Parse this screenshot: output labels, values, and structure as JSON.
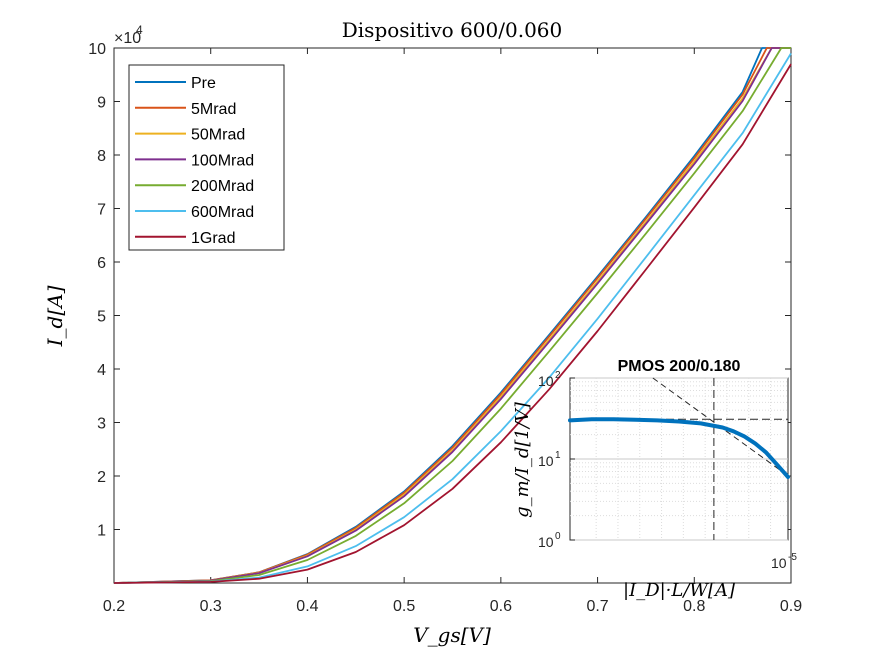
{
  "chart_data": [
    {
      "type": "line",
      "title": "Dispositivo 600/0.060",
      "xlabel": "V_gs[V]",
      "ylabel": "I_d[A]",
      "y_exponent_label": "×10",
      "y_exponent_power": "4",
      "xlim": [
        0.2,
        0.9
      ],
      "ylim": [
        0,
        100000
      ],
      "xticks": [
        0.2,
        0.3,
        0.4,
        0.5,
        0.6,
        0.7,
        0.8,
        0.9
      ],
      "xtick_labels": [
        "0.2",
        "0.3",
        "0.4",
        "0.5",
        "0.6",
        "0.7",
        "0.8",
        "0.9"
      ],
      "yticks": [
        10000,
        20000,
        30000,
        40000,
        50000,
        60000,
        70000,
        80000,
        90000,
        100000
      ],
      "ytick_labels": [
        "1",
        "2",
        "3",
        "4",
        "5",
        "6",
        "7",
        "8",
        "9",
        "10"
      ],
      "legend_position": "top-left",
      "grid": false,
      "series": [
        {
          "name": "Pre",
          "color": "#0072BD",
          "x": [
            0.2,
            0.3,
            0.35,
            0.4,
            0.45,
            0.5,
            0.55,
            0.6,
            0.65,
            0.7,
            0.75,
            0.8,
            0.85,
            0.87,
            0.9
          ],
          "y": [
            0,
            500,
            2000,
            5400,
            10500,
            17100,
            25600,
            35600,
            46400,
            57300,
            68400,
            79800,
            91800,
            100000,
            100000
          ]
        },
        {
          "name": "5Mrad",
          "color": "#D95319",
          "x": [
            0.2,
            0.3,
            0.35,
            0.4,
            0.45,
            0.5,
            0.55,
            0.6,
            0.65,
            0.7,
            0.75,
            0.8,
            0.85,
            0.875,
            0.9
          ],
          "y": [
            0,
            500,
            2000,
            5300,
            10300,
            16900,
            25300,
            35300,
            46100,
            57000,
            68100,
            79400,
            91300,
            100000,
            100000
          ]
        },
        {
          "name": "50Mrad",
          "color": "#EDB120",
          "x": [
            0.2,
            0.3,
            0.35,
            0.4,
            0.45,
            0.5,
            0.55,
            0.6,
            0.65,
            0.7,
            0.75,
            0.8,
            0.85,
            0.88,
            0.9
          ],
          "y": [
            0,
            450,
            1900,
            5100,
            10000,
            16500,
            24800,
            34800,
            45500,
            56400,
            67500,
            78800,
            90600,
            100000,
            100000
          ]
        },
        {
          "name": "100Mrad",
          "color": "#7E2F8E",
          "x": [
            0.2,
            0.3,
            0.35,
            0.4,
            0.45,
            0.5,
            0.55,
            0.6,
            0.65,
            0.7,
            0.75,
            0.8,
            0.85,
            0.88,
            0.9
          ],
          "y": [
            0,
            450,
            1850,
            5000,
            9800,
            16200,
            24500,
            34400,
            45100,
            56000,
            67100,
            78300,
            90100,
            100000,
            100000
          ]
        },
        {
          "name": "200Mrad",
          "color": "#77AC30",
          "x": [
            0.2,
            0.3,
            0.35,
            0.4,
            0.45,
            0.5,
            0.55,
            0.6,
            0.65,
            0.7,
            0.75,
            0.8,
            0.85,
            0.89,
            0.9
          ],
          "y": [
            0,
            350,
            1500,
            4300,
            8800,
            14900,
            22800,
            32600,
            43300,
            54200,
            65300,
            76600,
            88200,
            100000,
            100000
          ]
        },
        {
          "name": "600Mrad",
          "color": "#4DBEEE",
          "x": [
            0.2,
            0.3,
            0.35,
            0.4,
            0.45,
            0.5,
            0.55,
            0.6,
            0.65,
            0.7,
            0.75,
            0.8,
            0.85,
            0.9
          ],
          "y": [
            0,
            250,
            1000,
            3100,
            6900,
            12300,
            19400,
            28400,
            38400,
            49400,
            60900,
            72500,
            84100,
            99000
          ]
        },
        {
          "name": "1Grad",
          "color": "#A2142F",
          "x": [
            0.2,
            0.3,
            0.35,
            0.4,
            0.45,
            0.5,
            0.55,
            0.6,
            0.65,
            0.7,
            0.75,
            0.8,
            0.85,
            0.9
          ],
          "y": [
            0,
            200,
            800,
            2500,
            5800,
            10800,
            17600,
            26300,
            36200,
            47100,
            58600,
            70200,
            82000,
            97000
          ]
        }
      ]
    },
    {
      "type": "line",
      "title": "PMOS 200/0.180",
      "xlabel": "|I_D|·L/W[A]",
      "ylabel": "g_m/I_d[1/V]",
      "y_scale": "log",
      "x_scale": "log",
      "ylim": [
        1,
        100
      ],
      "yticks": [
        1,
        10,
        100
      ],
      "ytick_labels": [
        "10",
        "10",
        "10"
      ],
      "ytick_powers": [
        "0",
        "1",
        "2"
      ],
      "x_corner_label": "10",
      "x_corner_power": "-5",
      "grid": true,
      "curve": {
        "color": "#0072BD",
        "x_rel": [
          0,
          0.1,
          0.2,
          0.3,
          0.4,
          0.5,
          0.6,
          0.7,
          0.75,
          0.8,
          0.85,
          0.9,
          0.95,
          1.0
        ],
        "y": [
          30,
          31,
          31,
          30.5,
          30,
          29,
          27.5,
          24.5,
          22,
          19,
          15.5,
          12,
          8.5,
          6
        ]
      },
      "asymptote": {
        "x_rel": [
          0.38,
          1.0
        ],
        "y": [
          100,
          6.2
        ]
      },
      "hline_y": 31,
      "vline_x_rel": 0.66
    }
  ]
}
